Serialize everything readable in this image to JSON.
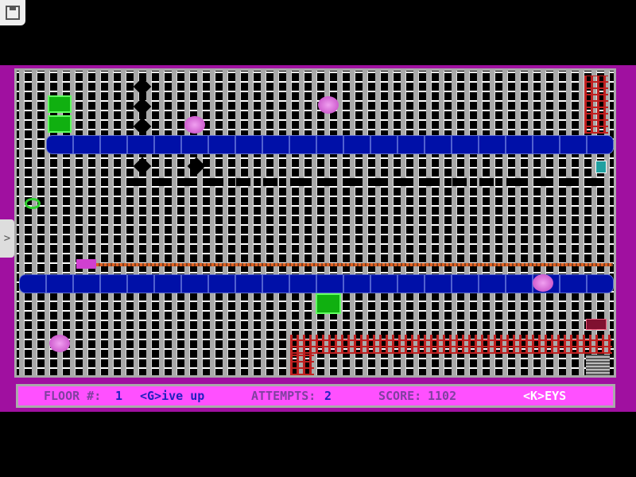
{
  "status": {
    "floor_label": "FLOOR #:",
    "floor": "1",
    "give_up": "<G>ive up",
    "attempts_label": "ATTEMPTS:",
    "attempts": "2",
    "score_label": "SCORE:",
    "score": "1102",
    "keys": "<K>EYS"
  },
  "colors": {
    "frame": "#a010a0",
    "status_bg": "#ff50ff",
    "label": "#8040a0",
    "value": "#2020c0",
    "keys": "#ffffff",
    "platform": "#0010a8"
  }
}
